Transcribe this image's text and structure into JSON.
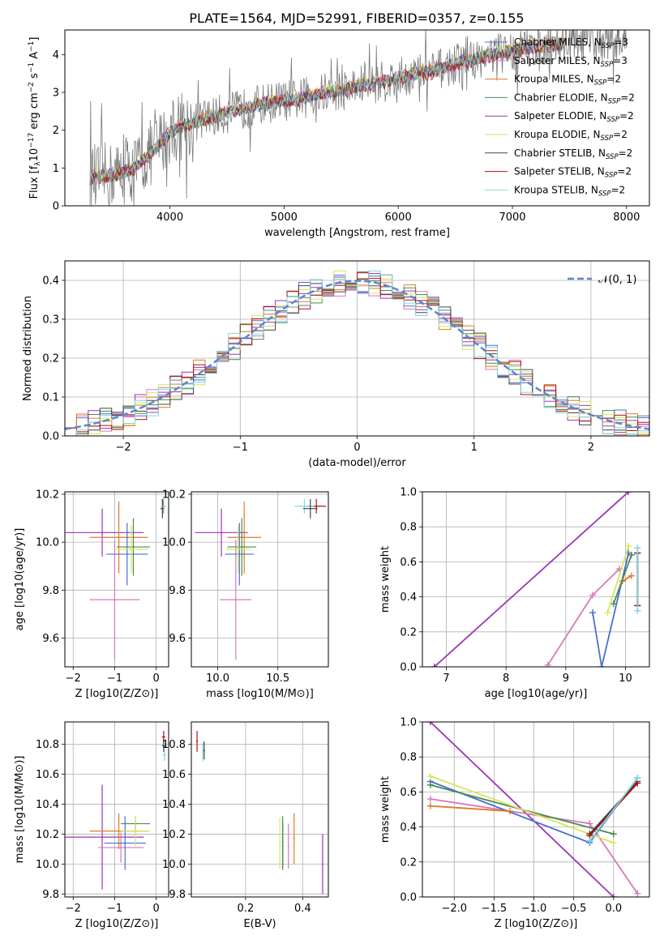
{
  "figure_title": "PLATE=1564, MJD=52991, FIBERID=0357, z=0.155",
  "model_legend": [
    {
      "label": "Chabrier MILES, N",
      "sub": "SSP",
      "tail": "=3",
      "color": "#4a6fd0"
    },
    {
      "label": "Salpeter MILES, N",
      "sub": "SSP",
      "tail": "=3",
      "color": "#d878b8"
    },
    {
      "label": "Kroupa MILES, N",
      "sub": "SSP",
      "tail": "=2",
      "color": "#e07a28"
    },
    {
      "label": "Chabrier ELODIE, N",
      "sub": "SSP",
      "tail": "=2",
      "color": "#4a8a50"
    },
    {
      "label": "Salpeter ELODIE, N",
      "sub": "SSP",
      "tail": "=2",
      "color": "#9c35b5"
    },
    {
      "label": "Kroupa ELODIE, N",
      "sub": "SSP",
      "tail": "=2",
      "color": "#d6e65a"
    },
    {
      "label": "Chabrier STELIB, N",
      "sub": "SSP",
      "tail": "=2",
      "color": "#444444"
    },
    {
      "label": "Salpeter STELIB, N",
      "sub": "SSP",
      "tail": "=2",
      "color": "#b01010"
    },
    {
      "label": "Kroupa STELIB, N",
      "sub": "SSP",
      "tail": "=2",
      "color": "#7fd6dc"
    }
  ],
  "normal_legend": "𝒩(0, 1)",
  "chart_data": [
    {
      "id": "spectrum",
      "type": "line",
      "xlabel": "wavelength [Angstrom, rest frame]",
      "ylabel_parts": {
        "a": "Flux [f",
        "sub": "λ",
        "b": "10",
        "sup1": "−17",
        "c": " erg cm",
        "sup2": "−2",
        "d": " s",
        "sup3": "−1",
        "e": " A",
        "sup4": "−1",
        "f": "]"
      },
      "xlim": [
        3080,
        8200
      ],
      "ylim": [
        0,
        4.65
      ],
      "xticks": [
        4000,
        5000,
        6000,
        7000,
        8000
      ],
      "yticks": [
        0,
        1,
        2,
        3,
        4
      ],
      "series": [
        {
          "x": [
            3300,
            3500,
            3700,
            3800,
            3900,
            4000,
            4100,
            4300,
            4500,
            4700,
            4900,
            5100,
            5300,
            5500,
            5700,
            5900,
            6100,
            6300,
            6500,
            6700,
            6900,
            7100,
            7300,
            7500,
            7700,
            7900,
            8000
          ],
          "y": [
            0.75,
            0.8,
            1.0,
            1.3,
            1.6,
            1.95,
            2.1,
            2.3,
            2.45,
            2.6,
            2.75,
            2.8,
            2.95,
            3.05,
            3.2,
            3.3,
            3.45,
            3.55,
            3.75,
            3.9,
            4.05,
            4.15,
            4.25,
            4.3,
            4.35,
            4.4,
            4.42
          ]
        }
      ]
    },
    {
      "id": "residuals",
      "type": "step",
      "xlabel": "(data-model)/error",
      "ylabel": "Normed distribution",
      "xlim": [
        -2.5,
        2.5
      ],
      "ylim": [
        0,
        0.45
      ],
      "xticks": [
        -2,
        -1,
        0,
        1,
        2
      ],
      "yticks": [
        0.0,
        0.1,
        0.2,
        0.3,
        0.4
      ],
      "bin_width": 0.1,
      "reference": {
        "name": "𝒩(0, 1)",
        "mean": 0,
        "sigma": 1
      }
    },
    {
      "id": "age_vs_Z",
      "type": "errorbar",
      "xlabel": "Z [log10(Z/Z⊙)]",
      "ylabel": "age  [log10(age/yr)]",
      "xlim": [
        -2.2,
        0.3
      ],
      "ylim": [
        9.48,
        10.21
      ],
      "xticks": [
        -2,
        -1,
        0
      ],
      "yticks": [
        9.6,
        9.8,
        10.0,
        10.2
      ],
      "points": [
        {
          "model": 4,
          "x": -1.3,
          "xerr": 1.0,
          "y": 10.04,
          "yerr": 0.1
        },
        {
          "model": 2,
          "x": -0.9,
          "xerr": 0.7,
          "y": 10.02,
          "yerr": 0.15
        },
        {
          "model": 1,
          "x": -1.0,
          "xerr": 0.6,
          "y": 9.76,
          "yerr": 0.25
        },
        {
          "model": 0,
          "x": -0.7,
          "xerr": 0.5,
          "y": 9.95,
          "yerr": 0.13
        },
        {
          "model": 3,
          "x": -0.55,
          "xerr": 0.4,
          "y": 9.98,
          "yerr": 0.12
        },
        {
          "model": 5,
          "x": -0.6,
          "xerr": 0.4,
          "y": 9.97,
          "yerr": 0.1
        },
        {
          "model": 6,
          "x": 0.15,
          "xerr": 0.05,
          "y": 10.14,
          "yerr": 0.04
        },
        {
          "model": 7,
          "x": 0.17,
          "xerr": 0.05,
          "y": 10.15,
          "yerr": 0.03
        },
        {
          "model": 8,
          "x": 0.18,
          "xerr": 0.05,
          "y": 10.15,
          "yerr": 0.03
        }
      ]
    },
    {
      "id": "age_vs_mass",
      "type": "errorbar",
      "xlabel": "mass [log10(M/M⊙)]",
      "ylabel": "",
      "xlim": [
        9.78,
        10.92
      ],
      "ylim": [
        9.48,
        10.21
      ],
      "xticks": [
        10.0,
        10.5
      ],
      "yticks": [
        9.6,
        9.8,
        10.0,
        10.2
      ],
      "points": [
        {
          "model": 4,
          "x": 10.03,
          "xerr": 0.22,
          "y": 10.04,
          "yerr": 0.1
        },
        {
          "model": 2,
          "x": 10.22,
          "xerr": 0.14,
          "y": 10.02,
          "yerr": 0.15
        },
        {
          "model": 1,
          "x": 10.15,
          "xerr": 0.13,
          "y": 9.76,
          "yerr": 0.25
        },
        {
          "model": 0,
          "x": 10.18,
          "xerr": 0.12,
          "y": 9.95,
          "yerr": 0.13
        },
        {
          "model": 3,
          "x": 10.2,
          "xerr": 0.12,
          "y": 9.98,
          "yerr": 0.12
        },
        {
          "model": 5,
          "x": 10.17,
          "xerr": 0.1,
          "y": 9.97,
          "yerr": 0.1
        },
        {
          "model": 7,
          "x": 10.82,
          "xerr": 0.08,
          "y": 10.15,
          "yerr": 0.03
        },
        {
          "model": 8,
          "x": 10.72,
          "xerr": 0.08,
          "y": 10.15,
          "yerr": 0.03
        },
        {
          "model": 6,
          "x": 10.77,
          "xerr": 0.06,
          "y": 10.14,
          "yerr": 0.04
        }
      ]
    },
    {
      "id": "weight_vs_age",
      "type": "line",
      "xlabel": "age  [log10(age/yr)]",
      "ylabel": "mass weight",
      "xlim": [
        6.6,
        10.4
      ],
      "ylim": [
        0,
        1
      ],
      "xticks": [
        7,
        8,
        9,
        10
      ],
      "yticks": [
        0.0,
        0.2,
        0.4,
        0.6,
        0.8,
        1.0
      ],
      "series": [
        {
          "model": 4,
          "x": [
            6.8,
            10.05
          ],
          "y": [
            0.0,
            1.0
          ]
        },
        {
          "model": 1,
          "x": [
            8.7,
            9.45,
            9.9
          ],
          "y": [
            0.01,
            0.41,
            0.56
          ]
        },
        {
          "model": 0,
          "x": [
            9.45,
            9.6,
            10.05
          ],
          "y": [
            0.31,
            0.0,
            0.65
          ]
        },
        {
          "model": 2,
          "x": [
            9.95,
            10.1
          ],
          "y": [
            0.49,
            0.52
          ]
        },
        {
          "model": 3,
          "x": [
            9.8,
            10.1
          ],
          "y": [
            0.36,
            0.64
          ]
        },
        {
          "model": 5,
          "x": [
            9.7,
            10.05
          ],
          "y": [
            0.31,
            0.69
          ]
        },
        {
          "model": 6,
          "x": [
            10.2,
            10.2
          ],
          "y": [
            0.35,
            0.65
          ]
        },
        {
          "model": 7,
          "x": [
            10.2,
            10.2
          ],
          "y": [
            0.35,
            0.65
          ]
        },
        {
          "model": 8,
          "x": [
            10.2,
            10.2
          ],
          "y": [
            0.32,
            0.68
          ]
        }
      ]
    },
    {
      "id": "mass_vs_Z",
      "type": "errorbar",
      "xlabel": "Z [log10(Z/Z⊙)]",
      "ylabel": "mass [log10(M/M⊙)]",
      "xlim": [
        -2.2,
        0.3
      ],
      "ylim": [
        9.78,
        10.95
      ],
      "xticks": [
        -2,
        -1,
        0
      ],
      "yticks": [
        9.8,
        10.0,
        10.2,
        10.4,
        10.6,
        10.8
      ],
      "points": [
        {
          "model": 4,
          "x": -1.3,
          "xerr": 1.0,
          "y": 10.18,
          "yerr": 0.35
        },
        {
          "model": 2,
          "x": -0.9,
          "xerr": 0.7,
          "y": 10.22,
          "yerr": 0.12
        },
        {
          "model": 1,
          "x": -0.85,
          "xerr": 0.55,
          "y": 10.11,
          "yerr": 0.1
        },
        {
          "model": 0,
          "x": -0.75,
          "xerr": 0.5,
          "y": 10.14,
          "yerr": 0.18
        },
        {
          "model": 3,
          "x": -0.5,
          "xerr": 0.35,
          "y": 10.27,
          "yerr": 0.05
        },
        {
          "model": 5,
          "x": -0.5,
          "xerr": 0.35,
          "y": 10.22,
          "yerr": 0.1
        },
        {
          "model": 7,
          "x": 0.18,
          "xerr": 0.04,
          "y": 10.85,
          "yerr": 0.04
        },
        {
          "model": 6,
          "x": 0.18,
          "xerr": 0.04,
          "y": 10.79,
          "yerr": 0.04
        },
        {
          "model": 8,
          "x": 0.2,
          "xerr": 0.04,
          "y": 10.73,
          "yerr": 0.04
        }
      ]
    },
    {
      "id": "mass_vs_ebv",
      "type": "errorbar",
      "xlabel": "E(B-V)",
      "ylabel": "",
      "xlim": [
        0.01,
        0.49
      ],
      "ylim": [
        9.78,
        10.95
      ],
      "xticks": [
        0.2,
        0.4
      ],
      "yticks": [
        9.8,
        10.0,
        10.2,
        10.4,
        10.6,
        10.8
      ],
      "points": [
        {
          "model": 4,
          "x": 0.47,
          "y": 10.0,
          "yerr": 0.2
        },
        {
          "model": 2,
          "x": 0.37,
          "y": 10.17,
          "yerr": 0.17
        },
        {
          "model": 1,
          "x": 0.35,
          "y": 10.12,
          "yerr": 0.15
        },
        {
          "model": 0,
          "x": 0.33,
          "y": 10.12,
          "yerr": 0.16
        },
        {
          "model": 3,
          "x": 0.33,
          "y": 10.15,
          "yerr": 0.17
        },
        {
          "model": 5,
          "x": 0.32,
          "y": 10.14,
          "yerr": 0.17
        },
        {
          "model": 7,
          "x": 0.03,
          "y": 10.82,
          "yerr": 0.07
        },
        {
          "model": 6,
          "x": 0.055,
          "y": 10.76,
          "yerr": 0.06
        },
        {
          "model": 8,
          "x": 0.05,
          "y": 10.75,
          "yerr": 0.06
        }
      ]
    },
    {
      "id": "weight_vs_Z",
      "type": "line",
      "xlabel": "Z [log10(Z/Z⊙)]",
      "ylabel": "mass weight",
      "xlim": [
        -2.4,
        0.45
      ],
      "ylim": [
        0,
        1
      ],
      "xticks": [
        -2.0,
        -1.5,
        -1.0,
        -0.5,
        0.0
      ],
      "yticks": [
        0.0,
        0.2,
        0.4,
        0.6,
        0.8,
        1.0
      ],
      "series": [
        {
          "model": 4,
          "x": [
            -2.3,
            0.0
          ],
          "y": [
            1.0,
            0.0
          ]
        },
        {
          "model": 1,
          "x": [
            -2.3,
            -0.3,
            0.3
          ],
          "y": [
            0.56,
            0.42,
            0.02
          ]
        },
        {
          "model": 0,
          "x": [
            -2.3,
            -0.3,
            0.3
          ],
          "y": [
            0.66,
            0.31,
            0.68
          ]
        },
        {
          "model": 2,
          "x": [
            -2.3,
            -1.3
          ],
          "y": [
            0.52,
            0.49
          ]
        },
        {
          "model": 3,
          "x": [
            -2.3,
            0.0
          ],
          "y": [
            0.64,
            0.36
          ]
        },
        {
          "model": 5,
          "x": [
            -2.3,
            0.0
          ],
          "y": [
            0.69,
            0.31
          ]
        },
        {
          "model": 6,
          "x": [
            -0.3,
            0.3
          ],
          "y": [
            0.36,
            0.66
          ]
        },
        {
          "model": 7,
          "x": [
            -0.3,
            0.3
          ],
          "y": [
            0.35,
            0.65
          ]
        },
        {
          "model": 8,
          "x": [
            -0.3,
            0.3
          ],
          "y": [
            0.32,
            0.68
          ]
        }
      ]
    }
  ]
}
